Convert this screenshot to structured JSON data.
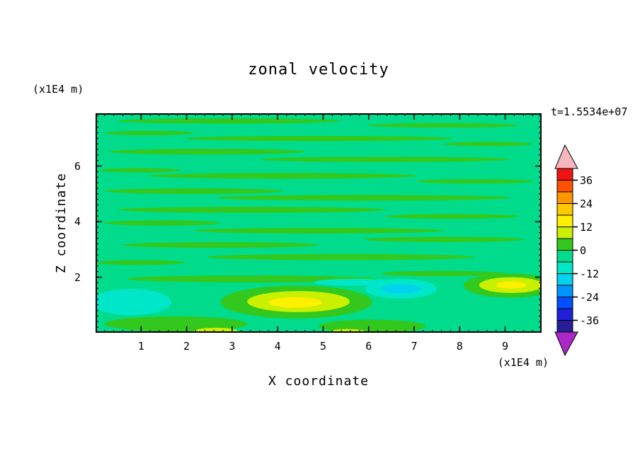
{
  "title": "zonal velocity",
  "timestamp": "t=1.5534e+07",
  "axes": {
    "x_label": "X coordinate",
    "x_unit": "(x1E4 m)",
    "y_label": "Z coordinate",
    "y_unit": "(x1E4 m)"
  },
  "chart_data": {
    "type": "filled_contour",
    "title": "zonal velocity",
    "xlabel": "X coordinate",
    "x_unit": "(x1E4 m)",
    "ylabel": "Z coordinate",
    "y_unit": "(x1E4 m)",
    "time_annotation": "t=1.5534e+07",
    "xlim": [
      0,
      9.8
    ],
    "ylim": [
      0,
      7.9
    ],
    "xticks": [
      1,
      2,
      3,
      4,
      5,
      6,
      7,
      8,
      9
    ],
    "yticks": [
      2,
      4,
      6
    ],
    "minor_tick_step": 0.2,
    "contour_interval": 6,
    "labeled_levels": [
      36,
      24,
      12,
      0,
      -12,
      -24,
      -36
    ],
    "colorbar": {
      "over_color": "#f5b6c0",
      "under_color": "#aa28c8",
      "cells": [
        {
          "min": 36,
          "max": 42,
          "color": "#ee1414"
        },
        {
          "min": 30,
          "max": 36,
          "color": "#ff5000"
        },
        {
          "min": 24,
          "max": 30,
          "color": "#ff9600"
        },
        {
          "min": 18,
          "max": 24,
          "color": "#ffc800"
        },
        {
          "min": 12,
          "max": 18,
          "color": "#fff000"
        },
        {
          "min": 6,
          "max": 12,
          "color": "#c8f000"
        },
        {
          "min": 0,
          "max": 6,
          "color": "#32c81e"
        },
        {
          "min": -6,
          "max": 0,
          "color": "#00dc8c"
        },
        {
          "min": -12,
          "max": -6,
          "color": "#00e6c8"
        },
        {
          "min": -18,
          "max": -12,
          "color": "#00d2f0"
        },
        {
          "min": -24,
          "max": -18,
          "color": "#0096ff"
        },
        {
          "min": -30,
          "max": -24,
          "color": "#0050ff"
        },
        {
          "min": -36,
          "max": -30,
          "color": "#2020dc"
        },
        {
          "min": -42,
          "max": -36,
          "color": "#281e96"
        }
      ]
    },
    "field": {
      "background_value": -3,
      "features": [
        {
          "value": 3,
          "cx": 0.3,
          "cy": 0.035,
          "rx": 0.25,
          "ry": 0.012
        },
        {
          "value": 3,
          "cx": 0.78,
          "cy": 0.055,
          "rx": 0.17,
          "ry": 0.01
        },
        {
          "value": 3,
          "cx": 0.12,
          "cy": 0.09,
          "rx": 0.1,
          "ry": 0.01
        },
        {
          "value": 3,
          "cx": 0.5,
          "cy": 0.115,
          "rx": 0.3,
          "ry": 0.012
        },
        {
          "value": 3,
          "cx": 0.88,
          "cy": 0.14,
          "rx": 0.1,
          "ry": 0.01
        },
        {
          "value": 3,
          "cx": 0.25,
          "cy": 0.175,
          "rx": 0.22,
          "ry": 0.013
        },
        {
          "value": 3,
          "cx": 0.65,
          "cy": 0.21,
          "rx": 0.28,
          "ry": 0.012
        },
        {
          "value": 3,
          "cx": 0.1,
          "cy": 0.26,
          "rx": 0.09,
          "ry": 0.01
        },
        {
          "value": 3,
          "cx": 0.42,
          "cy": 0.285,
          "rx": 0.3,
          "ry": 0.013
        },
        {
          "value": 3,
          "cx": 0.85,
          "cy": 0.31,
          "rx": 0.13,
          "ry": 0.01
        },
        {
          "value": 3,
          "cx": 0.22,
          "cy": 0.355,
          "rx": 0.2,
          "ry": 0.013
        },
        {
          "value": 3,
          "cx": 0.6,
          "cy": 0.385,
          "rx": 0.33,
          "ry": 0.013
        },
        {
          "value": 3,
          "cx": 0.35,
          "cy": 0.44,
          "rx": 0.3,
          "ry": 0.014
        },
        {
          "value": 3,
          "cx": 0.8,
          "cy": 0.47,
          "rx": 0.15,
          "ry": 0.011
        },
        {
          "value": 3,
          "cx": 0.15,
          "cy": 0.5,
          "rx": 0.13,
          "ry": 0.012
        },
        {
          "value": 3,
          "cx": 0.5,
          "cy": 0.535,
          "rx": 0.28,
          "ry": 0.013
        },
        {
          "value": 3,
          "cx": 0.78,
          "cy": 0.575,
          "rx": 0.18,
          "ry": 0.012
        },
        {
          "value": 3,
          "cx": 0.28,
          "cy": 0.6,
          "rx": 0.22,
          "ry": 0.013
        },
        {
          "value": 3,
          "cx": 0.55,
          "cy": 0.655,
          "rx": 0.3,
          "ry": 0.014
        },
        {
          "value": 3,
          "cx": 0.1,
          "cy": 0.68,
          "rx": 0.1,
          "ry": 0.011
        },
        {
          "value": 3,
          "cx": 0.35,
          "cy": 0.755,
          "rx": 0.28,
          "ry": 0.016
        },
        {
          "value": 3,
          "cx": 0.78,
          "cy": 0.73,
          "rx": 0.14,
          "ry": 0.012
        },
        {
          "value": 3,
          "cx": 0.45,
          "cy": 0.86,
          "rx": 0.17,
          "ry": 0.075
        },
        {
          "value": 3,
          "cx": 0.93,
          "cy": 0.785,
          "rx": 0.105,
          "ry": 0.055
        },
        {
          "value": 3,
          "cx": 0.18,
          "cy": 0.96,
          "rx": 0.16,
          "ry": 0.035
        },
        {
          "value": 3,
          "cx": 0.62,
          "cy": 0.97,
          "rx": 0.12,
          "ry": 0.03
        },
        {
          "value": -9,
          "cx": 0.08,
          "cy": 0.86,
          "rx": 0.09,
          "ry": 0.06
        },
        {
          "value": -9,
          "cx": 0.685,
          "cy": 0.8,
          "rx": 0.08,
          "ry": 0.045
        },
        {
          "value": -15,
          "cx": 0.685,
          "cy": 0.8,
          "rx": 0.045,
          "ry": 0.02
        },
        {
          "value": -9,
          "cx": 0.58,
          "cy": 0.77,
          "rx": 0.09,
          "ry": 0.016
        },
        {
          "value": 9,
          "cx": 0.455,
          "cy": 0.858,
          "rx": 0.115,
          "ry": 0.048
        },
        {
          "value": 15,
          "cx": 0.448,
          "cy": 0.862,
          "rx": 0.06,
          "ry": 0.024
        },
        {
          "value": 9,
          "cx": 0.932,
          "cy": 0.783,
          "rx": 0.072,
          "ry": 0.036
        },
        {
          "value": 15,
          "cx": 0.932,
          "cy": 0.783,
          "rx": 0.034,
          "ry": 0.016
        },
        {
          "value": 9,
          "cx": 0.27,
          "cy": 0.995,
          "rx": 0.05,
          "ry": 0.018
        },
        {
          "value": 9,
          "cx": 0.565,
          "cy": 0.998,
          "rx": 0.042,
          "ry": 0.015
        }
      ]
    }
  }
}
